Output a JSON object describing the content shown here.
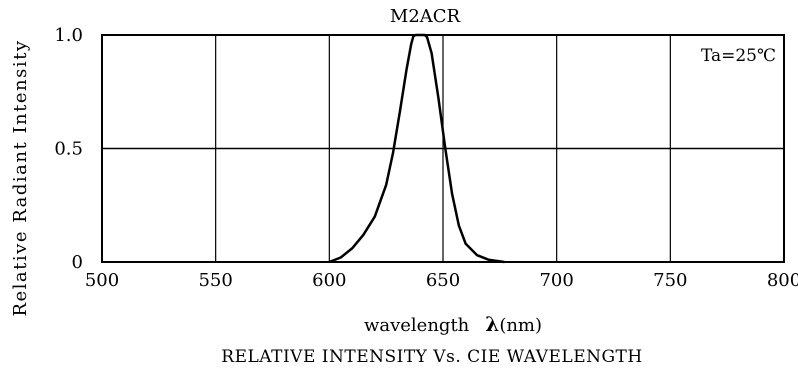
{
  "chart_data": {
    "type": "line",
    "title": "M2ACR",
    "xlabel": "wavelength",
    "xlabel_symbol": "λ",
    "xlabel_unit": "(nm)",
    "ylabel": "Relative Radiant Intensity",
    "caption": "RELATIVE INTENSITY Vs. CIE WAVELENGTH",
    "annotation": "Ta=25℃",
    "xlim": [
      500,
      800
    ],
    "ylim": [
      0,
      1.0
    ],
    "x_ticks": [
      "500",
      "550",
      "600",
      "650",
      "700",
      "750",
      "800"
    ],
    "y_ticks": [
      "0",
      "0.5",
      "1.0"
    ],
    "grid": true,
    "series": [
      {
        "x": [
          600,
          605,
          610,
          615,
          620,
          625,
          628,
          631,
          634,
          636,
          637,
          638,
          640,
          642,
          643,
          645,
          648,
          651,
          654,
          657,
          660,
          665,
          670,
          677
        ],
        "y": [
          0,
          0.02,
          0.06,
          0.12,
          0.2,
          0.34,
          0.48,
          0.66,
          0.85,
          0.96,
          0.995,
          1.0,
          1.0,
          1.0,
          0.99,
          0.92,
          0.72,
          0.5,
          0.3,
          0.16,
          0.08,
          0.03,
          0.01,
          0
        ]
      }
    ]
  }
}
